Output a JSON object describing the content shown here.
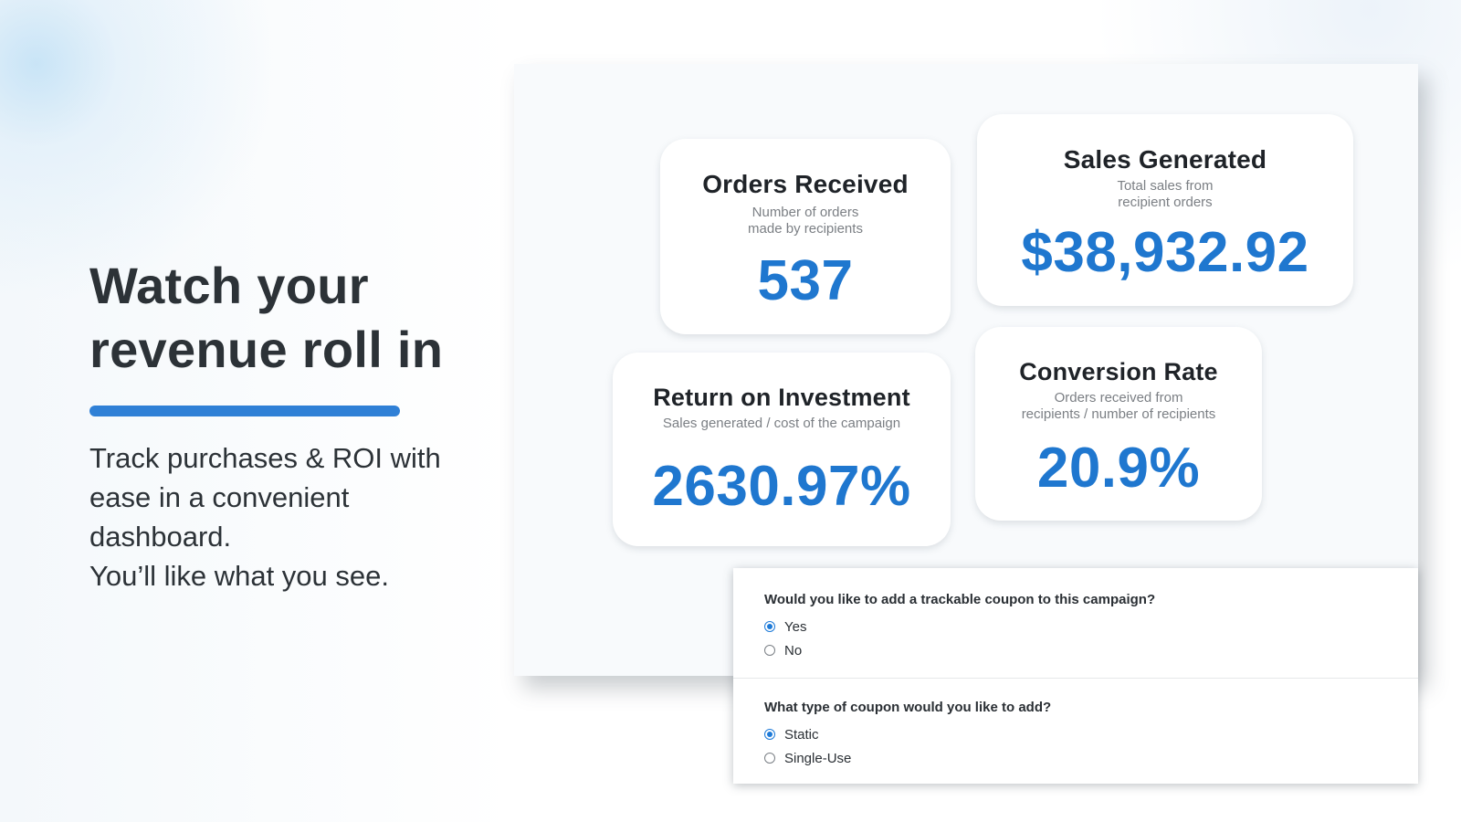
{
  "hero": {
    "headline_line1": "Watch your",
    "headline_line2": "revenue roll in",
    "sub_line1": "Track purchases & ROI with",
    "sub_line2": "ease in a convenient",
    "sub_line3": "dashboard.",
    "sub_line4": "You’ll like what you see.",
    "accent_color": "#2f80d6"
  },
  "metrics": {
    "orders": {
      "title": "Orders Received",
      "sub_line1": "Number of orders",
      "sub_line2": "made by recipients",
      "value": "537"
    },
    "sales": {
      "title": "Sales Generated",
      "sub_line1": "Total sales from",
      "sub_line2": "recipient orders",
      "value": "$38,932.92"
    },
    "roi": {
      "title": "Return on Investment",
      "sub_line1": "Sales generated / cost of the campaign",
      "value": "2630.97%"
    },
    "conversion": {
      "title": "Conversion Rate",
      "sub_line1": "Orders received from",
      "sub_line2": "recipients / number of recipients",
      "value": "20.9%"
    },
    "value_color": "#1f77cf"
  },
  "coupon_form": {
    "q1": {
      "question": "Would you like to add a trackable coupon to this campaign?",
      "options": [
        "Yes",
        "No"
      ],
      "selected": "Yes"
    },
    "q2": {
      "question": "What type of coupon would you like to add?",
      "options": [
        "Static",
        "Single-Use"
      ],
      "selected": "Static"
    },
    "radio_color": "#1d7ad8"
  }
}
